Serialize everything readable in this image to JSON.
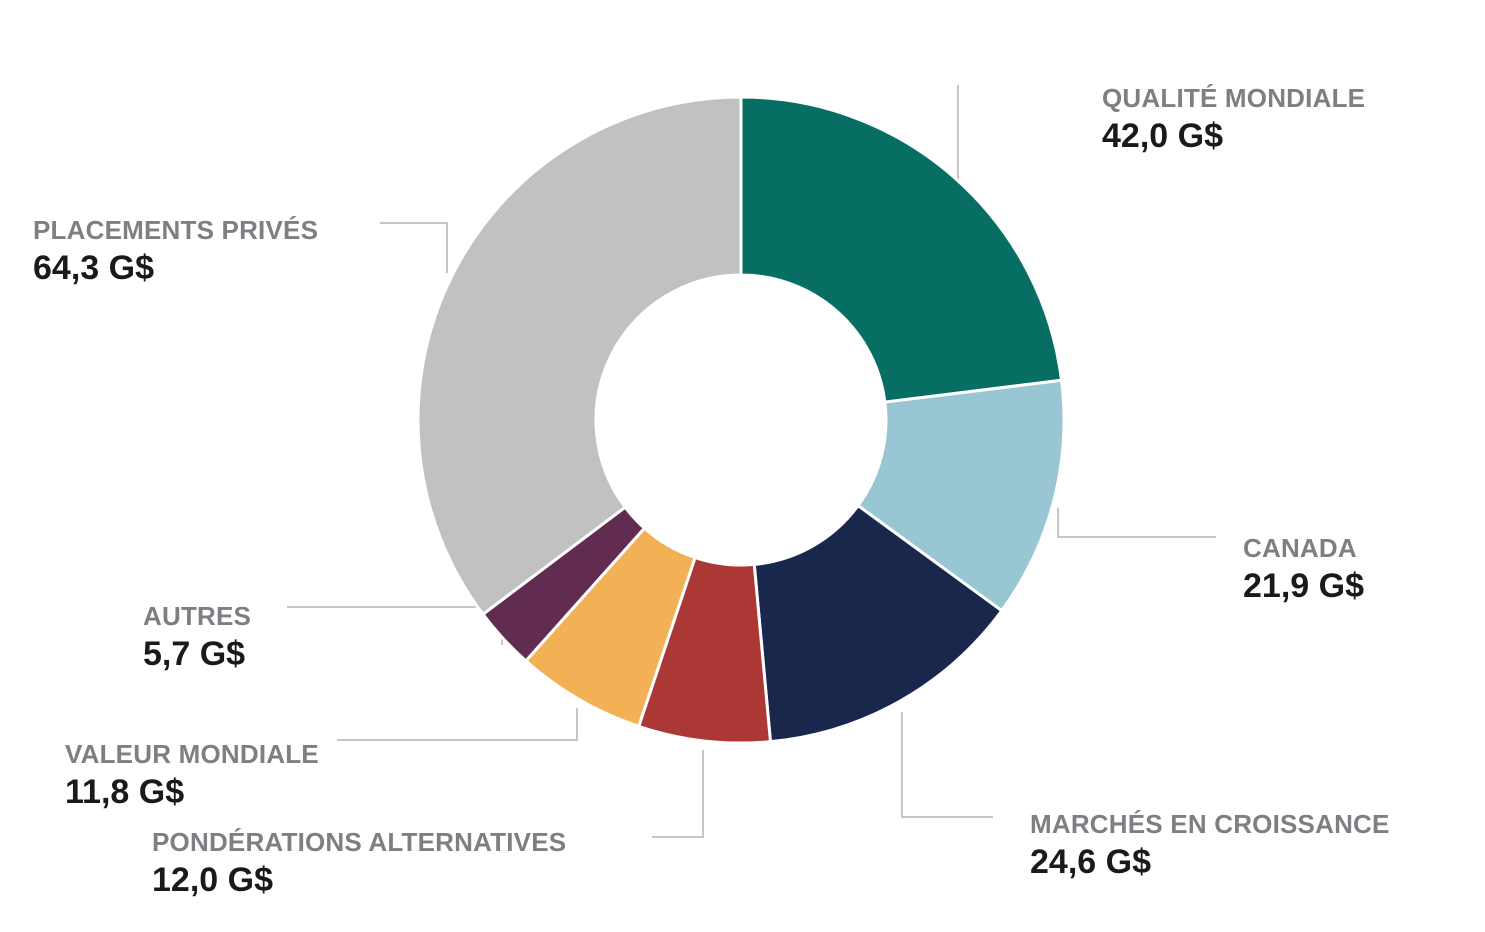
{
  "page": {
    "background_color": "#ffffff"
  },
  "chart_data": {
    "type": "pie",
    "subtype": "donut",
    "title": "",
    "unit": "G$",
    "number_format": "french-comma-decimal",
    "direction": "clockwise",
    "start_position": "12-oclock",
    "legend_position": "outside-callouts-with-leader-lines",
    "segments": [
      {
        "id": "qualite-mondiale",
        "label": "QUALITÉ MONDIALE",
        "value": 42.0,
        "value_label": "42,0 G$",
        "color": "#076e64"
      },
      {
        "id": "canada",
        "label": "CANADA",
        "value": 21.9,
        "value_label": "21,9 G$",
        "color": "#98c6d2"
      },
      {
        "id": "marches-en-croissance",
        "label": "MARCHÉS EN CROISSANCE",
        "value": 24.6,
        "value_label": "24,6 G$",
        "color": "#1a274d"
      },
      {
        "id": "ponderations-alternatives",
        "label": "PONDÉRATIONS ALTERNATIVES",
        "value": 12.0,
        "value_label": "12,0 G$",
        "color": "#ac3835"
      },
      {
        "id": "valeur-mondiale",
        "label": "VALEUR MONDIALE",
        "value": 11.8,
        "value_label": "11,8 G$",
        "color": "#f3b156"
      },
      {
        "id": "autres",
        "label": "AUTRES",
        "value": 5.7,
        "value_label": "5,7 G$",
        "color": "#622c51"
      },
      {
        "id": "placements-prives",
        "label": "PLACEMENTS PRIVÉS",
        "value": 64.3,
        "value_label": "64,3 G$",
        "color": "#c1c1c2"
      }
    ],
    "colors": {
      "label_text": "#7d7f83",
      "value_text": "#1a1a1a",
      "leader_line": "#c6c6c6",
      "slice_border": "#ffffff"
    }
  }
}
